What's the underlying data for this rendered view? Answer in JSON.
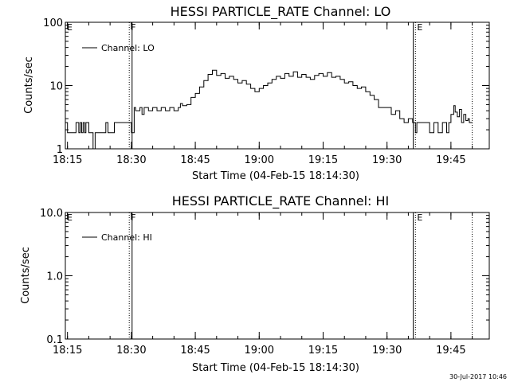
{
  "footer": {
    "stamp": "30-Jul-2017 10:46"
  },
  "chart_data": [
    {
      "type": "line",
      "title": "HESSI PARTICLE_RATE Channel: LO",
      "xlabel": "Start Time (04-Feb-15 18:14:30)",
      "ylabel": "Counts/sec",
      "yscale": "log",
      "xlim": [
        "18:14:30",
        "19:54:00"
      ],
      "ylim": [
        1,
        100
      ],
      "xticks": [
        "18:15",
        "18:30",
        "18:45",
        "19:00",
        "19:15",
        "19:30",
        "19:45"
      ],
      "yticks": [
        "1",
        "10",
        "100"
      ],
      "legend": {
        "position": "top-left",
        "entries": [
          "Channel: LO"
        ]
      },
      "markers": [
        {
          "label": "E",
          "time": "18:14:30",
          "style": "dotted"
        },
        {
          "label": "F",
          "time": "18:29:30",
          "style": "dotted"
        },
        {
          "label": "",
          "time": "18:30:10",
          "style": "solid"
        },
        {
          "label": "",
          "time": "19:36:10",
          "style": "solid"
        },
        {
          "label": "E",
          "time": "19:36:40",
          "style": "dotted"
        },
        {
          "label": "",
          "time": "19:50:00",
          "style": "dotted"
        }
      ],
      "series": [
        {
          "name": "Channel: LO",
          "x": [
            "18:14:30",
            "18:15:00",
            "18:16:00",
            "18:16:40",
            "18:17:00",
            "18:17:40",
            "18:18:00",
            "18:18:20",
            "18:18:40",
            "18:19:00",
            "18:19:20",
            "18:19:40",
            "18:20:00",
            "18:20:30",
            "18:21:00",
            "18:21:30",
            "18:22:00",
            "18:23:00",
            "18:23:30",
            "18:24:00",
            "18:24:30",
            "18:25:00",
            "18:26:00",
            "18:27:00",
            "18:28:00",
            "18:29:00",
            "18:30:00",
            "18:30:40",
            "18:31:00",
            "18:32:00",
            "18:32:30",
            "18:33:00",
            "18:34:00",
            "18:35:00",
            "18:36:00",
            "18:37:00",
            "18:38:00",
            "18:39:00",
            "18:40:00",
            "18:41:00",
            "18:41:30",
            "18:42:00",
            "18:43:00",
            "18:44:00",
            "18:45:00",
            "18:46:00",
            "18:47:00",
            "18:48:00",
            "18:49:00",
            "18:50:00",
            "18:51:00",
            "18:52:00",
            "18:53:00",
            "18:54:00",
            "18:55:00",
            "18:56:00",
            "18:57:00",
            "18:58:00",
            "18:59:00",
            "19:00:00",
            "19:01:00",
            "19:02:00",
            "19:03:00",
            "19:04:00",
            "19:05:00",
            "19:06:00",
            "19:07:00",
            "19:08:00",
            "19:09:00",
            "19:10:00",
            "19:11:00",
            "19:12:00",
            "19:13:00",
            "19:14:00",
            "19:15:00",
            "19:16:00",
            "19:17:00",
            "19:18:00",
            "19:19:00",
            "19:20:00",
            "19:21:00",
            "19:22:00",
            "19:23:00",
            "19:24:00",
            "19:25:00",
            "19:26:00",
            "19:27:00",
            "19:28:00",
            "19:29:00",
            "19:30:00",
            "19:31:00",
            "19:32:00",
            "19:33:00",
            "19:34:00",
            "19:35:00",
            "19:36:00",
            "19:36:40",
            "19:37:00",
            "19:38:00",
            "19:39:00",
            "19:40:00",
            "19:41:00",
            "19:42:00",
            "19:42:30",
            "19:43:00",
            "19:44:00",
            "19:44:30",
            "19:45:00",
            "19:45:40",
            "19:46:00",
            "19:46:30",
            "19:47:00",
            "19:47:30",
            "19:48:00",
            "19:48:30",
            "19:49:00",
            "19:49:20",
            "19:49:40",
            "19:50:00"
          ],
          "y": [
            2.6,
            1.8,
            1.8,
            1.8,
            2.6,
            1.8,
            2.6,
            1.8,
            2.6,
            1.8,
            2.6,
            2.6,
            1.8,
            1.8,
            1.0,
            1.8,
            1.8,
            1.8,
            1.8,
            2.6,
            1.8,
            1.8,
            2.6,
            2.6,
            2.6,
            2.6,
            1.8,
            4.5,
            4.0,
            4.5,
            3.5,
            4.5,
            4.0,
            4.5,
            4.0,
            4.5,
            4.0,
            4.5,
            4.0,
            4.5,
            5.2,
            4.8,
            5.0,
            6.5,
            7.5,
            9.5,
            12.0,
            15.0,
            17.5,
            14.5,
            15.5,
            13.0,
            14.0,
            12.5,
            11.0,
            12.0,
            10.5,
            9.0,
            8.0,
            9.0,
            10.0,
            11.0,
            12.5,
            14.0,
            13.0,
            15.5,
            14.0,
            16.5,
            13.5,
            15.0,
            13.5,
            12.5,
            14.5,
            15.5,
            14.0,
            16.0,
            13.5,
            14.0,
            12.5,
            11.0,
            11.5,
            10.0,
            9.0,
            9.5,
            8.0,
            7.0,
            6.0,
            4.5,
            4.5,
            4.5,
            3.5,
            4.0,
            3.0,
            2.6,
            3.0,
            2.6,
            1.8,
            2.6,
            2.6,
            2.6,
            1.8,
            2.6,
            1.8,
            1.8,
            2.6,
            1.8,
            2.6,
            3.5,
            4.8,
            3.8,
            3.2,
            4.2,
            2.6,
            3.5,
            2.8,
            3.0,
            2.6,
            2.6,
            2.6
          ]
        }
      ]
    },
    {
      "type": "line",
      "title": "HESSI PARTICLE_RATE Channel: HI",
      "xlabel": "Start Time (04-Feb-15 18:14:30)",
      "ylabel": "Counts/sec",
      "yscale": "log",
      "xlim": [
        "18:14:30",
        "19:54:00"
      ],
      "ylim": [
        0.1,
        10.0
      ],
      "xticks": [
        "18:15",
        "18:30",
        "18:45",
        "19:00",
        "19:15",
        "19:30",
        "19:45"
      ],
      "yticks": [
        "0.1",
        "1.0",
        "10.0"
      ],
      "legend": {
        "position": "top-left",
        "entries": [
          "Channel: HI"
        ]
      },
      "markers": [
        {
          "label": "E",
          "time": "18:14:30",
          "style": "dotted"
        },
        {
          "label": "F",
          "time": "18:29:30",
          "style": "dotted"
        },
        {
          "label": "",
          "time": "18:30:10",
          "style": "solid"
        },
        {
          "label": "",
          "time": "19:36:10",
          "style": "solid"
        },
        {
          "label": "E",
          "time": "19:36:40",
          "style": "dotted"
        },
        {
          "label": "",
          "time": "19:50:00",
          "style": "dotted"
        }
      ],
      "series": [
        {
          "name": "Channel: HI",
          "x": [],
          "y": []
        }
      ]
    }
  ]
}
